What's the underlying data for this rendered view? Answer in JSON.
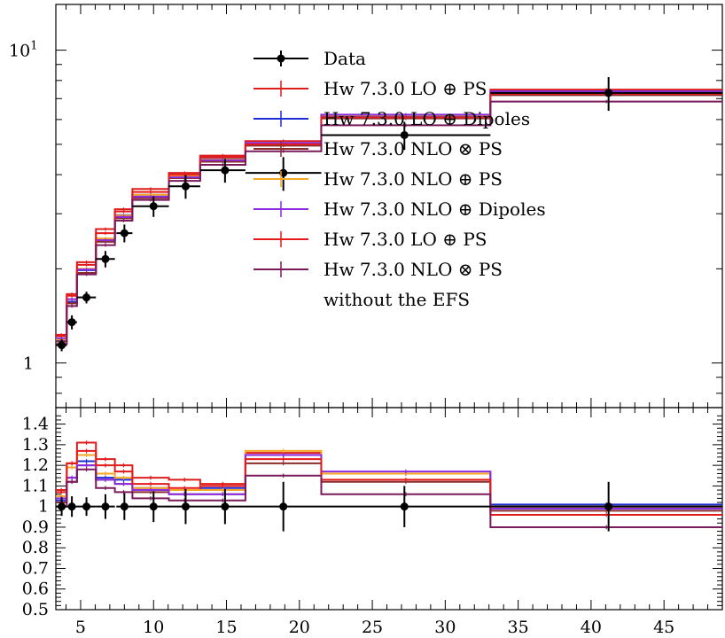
{
  "chart_data": [
    {
      "type": "line",
      "panel": "main",
      "yscale": "log",
      "ylim": [
        0.72,
        14
      ],
      "xlim": [
        3.3,
        49
      ],
      "y_tick_labels": [
        "1",
        "10^1"
      ],
      "edges": [
        3.3,
        4.05,
        4.75,
        6.05,
        7.35,
        8.55,
        11.05,
        13.2,
        16.3,
        21.5,
        33.1,
        49
      ],
      "data": {
        "name": "Data",
        "x": [
          3.7,
          4.4,
          5.4,
          6.7,
          8.0,
          10.0,
          12.2,
          14.9,
          18.9,
          27.2,
          41.2
        ],
        "y": [
          1.14,
          1.35,
          1.62,
          2.15,
          2.6,
          3.17,
          3.67,
          4.13,
          4.05,
          5.35,
          7.3
        ],
        "yerr": [
          0.05,
          0.07,
          0.07,
          0.13,
          0.17,
          0.24,
          0.32,
          0.36,
          0.5,
          0.55,
          0.9
        ],
        "xerr_lo": [
          0.4,
          0.35,
          0.65,
          0.65,
          0.55,
          1.45,
          1.2,
          1.7,
          2.6,
          5.7,
          8.1
        ],
        "xerr_hi": [
          0.35,
          0.35,
          0.65,
          0.65,
          0.55,
          1.05,
          1.0,
          1.4,
          2.6,
          5.9,
          7.8
        ]
      },
      "series": [
        {
          "name": "Hw 7.3.0 LO ⊕ PS",
          "color": "#dd1c1c",
          "values": [
            1.23,
            1.66,
            2.1,
            2.68,
            3.1,
            3.6,
            4.05,
            4.6,
            5.12,
            6.2,
            7.48
          ]
        },
        {
          "name": "Hw 7.3.0 LO ⊕ Dipoles",
          "color": "#1e2cd6",
          "values": [
            1.18,
            1.57,
            1.98,
            2.48,
            2.97,
            3.45,
            3.98,
            4.5,
            5.05,
            6.18,
            7.38
          ]
        },
        {
          "name": "Hw 7.3.0 NLO ⊗ PS",
          "color": "#8b2e2e",
          "values": [
            1.17,
            1.55,
            1.94,
            2.44,
            2.9,
            3.37,
            3.9,
            4.4,
            4.95,
            6.05,
            7.18
          ]
        },
        {
          "name": "Hw 7.3.0 NLO ⊕ PS",
          "color": "#f5a623",
          "values": [
            1.19,
            1.6,
            2.0,
            2.5,
            2.96,
            3.45,
            3.96,
            4.48,
            5.05,
            6.2,
            7.35
          ]
        },
        {
          "name": "Hw 7.3.0 NLO ⊕ Dipoles",
          "color": "#8a2be2",
          "values": [
            1.2,
            1.6,
            1.99,
            2.47,
            2.93,
            3.4,
            3.92,
            4.45,
            5.05,
            6.22,
            7.38
          ]
        },
        {
          "name": "Hw 7.3.0 LO ⊕ PS",
          "color": "#e51b1b",
          "values": [
            1.22,
            1.64,
            2.06,
            2.6,
            3.05,
            3.52,
            4.0,
            4.55,
            5.0,
            6.1,
            7.25
          ]
        },
        {
          "name": "Hw 7.3.0 NLO ⊗ PS",
          "color": "#7b1a5a",
          "values": [
            1.15,
            1.52,
            1.92,
            2.38,
            2.85,
            3.32,
            3.82,
            4.3,
            4.75,
            5.75,
            6.85
          ]
        }
      ],
      "legend_note": "without the EFS",
      "legend": "upper center"
    },
    {
      "type": "line",
      "panel": "ratio",
      "ylim": [
        0.5,
        1.48
      ],
      "xlim": [
        3.3,
        49
      ],
      "y_ticks": [
        0.5,
        0.6,
        0.7,
        0.8,
        0.9,
        1,
        1.1,
        1.2,
        1.3,
        1.4
      ],
      "y_tick_labels": [
        "0.5",
        "0.6",
        "0.7",
        "0.8",
        "0.9",
        "1",
        "1.1",
        "1.2",
        "1.3",
        "1.4"
      ],
      "x_ticks": [
        5,
        10,
        15,
        20,
        25,
        30,
        35,
        40,
        45
      ],
      "x_tick_labels": [
        "5",
        "10",
        "15",
        "20",
        "25",
        "30",
        "35",
        "40",
        "45"
      ],
      "data_rel_err": [
        0.045,
        0.05,
        0.045,
        0.06,
        0.065,
        0.075,
        0.085,
        0.085,
        0.12,
        0.1,
        0.12
      ],
      "series_ratio": [
        [
          1.08,
          1.21,
          1.31,
          1.23,
          1.2,
          1.14,
          1.13,
          1.11,
          1.26,
          1.16,
          1.0
        ],
        [
          1.03,
          1.14,
          1.22,
          1.14,
          1.13,
          1.09,
          1.08,
          1.09,
          1.25,
          1.16,
          1.01
        ],
        [
          1.02,
          1.12,
          1.2,
          1.13,
          1.11,
          1.07,
          1.06,
          1.06,
          1.21,
          1.12,
          0.98
        ],
        [
          1.05,
          1.19,
          1.25,
          1.16,
          1.14,
          1.09,
          1.08,
          1.08,
          1.27,
          1.16,
          1.0
        ],
        [
          1.04,
          1.14,
          1.2,
          1.13,
          1.11,
          1.08,
          1.06,
          1.06,
          1.25,
          1.17,
          0.99
        ],
        [
          1.07,
          1.21,
          1.27,
          1.2,
          1.17,
          1.11,
          1.09,
          1.1,
          1.23,
          1.13,
          0.96
        ],
        [
          1.0,
          1.12,
          1.18,
          1.09,
          1.07,
          1.04,
          1.03,
          1.03,
          1.15,
          1.06,
          0.9
        ]
      ]
    }
  ]
}
